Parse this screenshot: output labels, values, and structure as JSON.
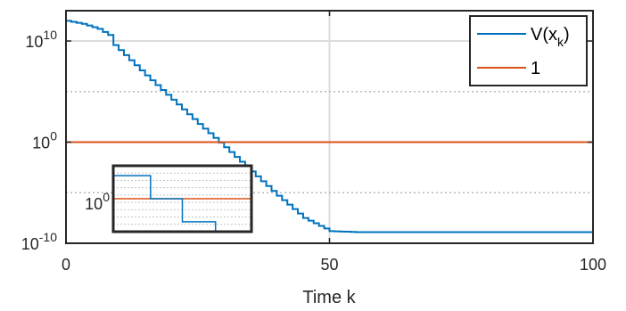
{
  "chart_data": {
    "type": "line",
    "title": "",
    "xlabel": "Time k",
    "ylabel": "",
    "xlim": [
      0,
      100
    ],
    "yscale": "log",
    "ylim_exponent": [
      -10,
      13
    ],
    "x_ticks": [
      {
        "value": 0,
        "label": "0"
      },
      {
        "value": 50,
        "label": "50"
      },
      {
        "value": 100,
        "label": "100"
      }
    ],
    "y_ticks": [
      {
        "exp": -10,
        "base": "10",
        "sup": "-10"
      },
      {
        "exp": 0,
        "base": "10",
        "sup": "0"
      },
      {
        "exp": 10,
        "base": "10",
        "sup": "10"
      }
    ],
    "y_minor_grid_exponents": [
      -5,
      5
    ],
    "grid": true,
    "legend_position": "top-right",
    "colors": {
      "series_1": "#0072BD",
      "series_2": "#D95319",
      "axis": "#262626"
    },
    "series": [
      {
        "name": "V(x_k)",
        "legend_base": "V(x",
        "legend_sub": "k",
        "legend_close": ")",
        "color": "#0072BD",
        "style": "stairs",
        "points_log10": [
          [
            0,
            12.0
          ],
          [
            3,
            11.7
          ],
          [
            6,
            11.2
          ],
          [
            8,
            10.6
          ],
          [
            9,
            9.6
          ],
          [
            11,
            8.6
          ],
          [
            15,
            6.6
          ],
          [
            20,
            4.2
          ],
          [
            25,
            1.8
          ],
          [
            30,
            -0.5
          ],
          [
            35,
            -2.9
          ],
          [
            40,
            -5.3
          ],
          [
            45,
            -7.5
          ],
          [
            50,
            -8.8
          ],
          [
            55,
            -8.9
          ],
          [
            100,
            -8.9
          ]
        ]
      },
      {
        "name": "1",
        "legend_base": "1",
        "color": "#D95319",
        "style": "line",
        "points_log10": [
          [
            0,
            0
          ],
          [
            100,
            0
          ]
        ]
      }
    ],
    "inset": {
      "y_tick": {
        "base": "10",
        "sup": "0"
      },
      "series_1_steps": [
        [
          0,
          0.35
        ],
        [
          0.27,
          0.35
        ],
        [
          0.27,
          0.0
        ],
        [
          0.5,
          0.0
        ],
        [
          0.5,
          -0.35
        ],
        [
          0.74,
          -0.35
        ],
        [
          0.74,
          -0.5
        ]
      ],
      "series_2_level": 0.0
    }
  }
}
